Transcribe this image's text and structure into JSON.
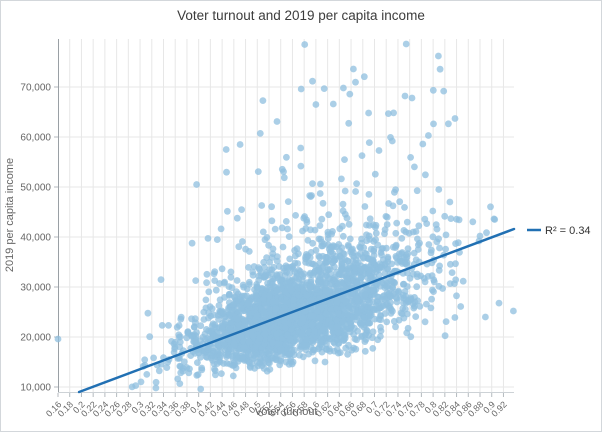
{
  "window": {
    "background": "#ffffff",
    "border_color": "#d3d7db"
  },
  "chart_data": {
    "type": "scatter",
    "title": "Voter turnout and 2019 per capita income",
    "xlabel": "Voter turnout",
    "ylabel": "2019 per capita income",
    "xlim": [
      0.16,
      0.938
    ],
    "ylim": [
      9000,
      79600
    ],
    "grid": true,
    "x_ticks": [
      0.16,
      0.18,
      0.2,
      0.22,
      0.24,
      0.26,
      0.28,
      0.3,
      0.32,
      0.34,
      0.36,
      0.38,
      0.4,
      0.42,
      0.44,
      0.46,
      0.48,
      0.5,
      0.52,
      0.54,
      0.56,
      0.58,
      0.6,
      0.62,
      0.64,
      0.66,
      0.68,
      0.7,
      0.72,
      0.74,
      0.76,
      0.78,
      0.8,
      0.82,
      0.84,
      0.86,
      0.88,
      0.9,
      0.92
    ],
    "y_ticks": [
      10000,
      20000,
      30000,
      40000,
      50000,
      60000,
      70000
    ],
    "colors": {
      "point_fill": "#8FBFDF",
      "point_opacity": 0.75,
      "trend_line": "#2170B3",
      "gridline": "#e7e7e7",
      "y_axis_line": "#9aa0a5",
      "x_axis_line": "#cdd2d6",
      "tick_mark": "#b4babf"
    },
    "points_style": {
      "radius": 3.4
    },
    "legend": {
      "label": "R² = 0.34",
      "position": "right-of-plot"
    },
    "trendline": {
      "x1": 0.196,
      "y1": 9000,
      "x2": 0.938,
      "y2": 41600,
      "r_squared": 0.34
    },
    "point_cloud": {
      "description": "Dense county-level scatter cloud; positive correlation between voter turnout and 2019 per capita income",
      "seed": 11,
      "count": 2800,
      "x_mean": 0.565,
      "x_std_low": 0.085,
      "x_std_high": 0.11,
      "x_min": 0.17,
      "x_max": 0.935,
      "y_intercept": 3000,
      "y_slope": 38000,
      "y_lognorm_sigma": 0.2,
      "tail_prob": 0.055,
      "tail_mult_min": 1.25,
      "tail_mult_max": 2.2,
      "y_min": 9600,
      "y_max": 78500
    },
    "outlier_points": [
      [
        0.16,
        19600
      ],
      [
        0.754,
        78600
      ],
      [
        0.809,
        76200
      ],
      [
        0.664,
        73600
      ],
      [
        0.647,
        69800
      ],
      [
        0.575,
        69600
      ],
      [
        0.752,
        68200
      ],
      [
        0.764,
        67800
      ],
      [
        0.6,
        66500
      ],
      [
        0.69,
        64800
      ],
      [
        0.937,
        25200
      ],
      [
        0.327,
        9800
      ],
      [
        0.905,
        43500
      ],
      [
        0.88,
        40200
      ]
    ]
  }
}
